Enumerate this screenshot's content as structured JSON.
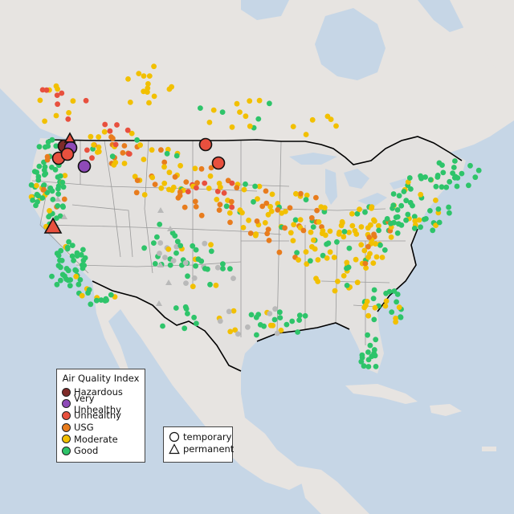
{
  "legend": {
    "title": "Air Quality Index",
    "categories": [
      {
        "label": "Hazardous",
        "color": "#7e2b28"
      },
      {
        "label": "Very Unhealthy",
        "color": "#8e4ab8"
      },
      {
        "label": "Unhealthy",
        "color": "#e8503e"
      },
      {
        "label": "USG",
        "color": "#e87c1d"
      },
      {
        "label": "Moderate",
        "color": "#f2c000"
      },
      {
        "label": "Good",
        "color": "#2ec46a"
      }
    ]
  },
  "station_types": {
    "temporary_label": "temporary",
    "permanent_label": "permanent"
  },
  "colors": {
    "ocean": "#c6d6e6",
    "land": "#e6e3e0",
    "us_land": "#e3e1df",
    "border": "#000000",
    "state_lines": "#9a9a9a",
    "inactive": "#b9b9b9"
  }
}
